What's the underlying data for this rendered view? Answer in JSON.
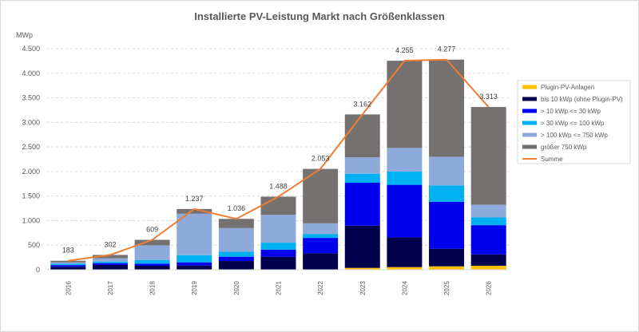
{
  "chart_data": {
    "type": "bar",
    "stacked": true,
    "title": "Installierte PV-Leistung Markt nach Größenklassen",
    "ylabel": "MWp",
    "xlabel": "",
    "ylim": [
      0,
      4500
    ],
    "yticks": [
      0,
      500,
      1000,
      1500,
      2000,
      2500,
      3000,
      3500,
      4000,
      4500
    ],
    "ytick_labels": [
      "0",
      "500",
      "1.000",
      "1.500",
      "2.000",
      "2.500",
      "3.000",
      "3.500",
      "4.000",
      "4.500"
    ],
    "grid": true,
    "legend_position": "right",
    "categories": [
      "2016",
      "2017",
      "2018",
      "2019",
      "2020",
      "2021",
      "2022",
      "2023",
      "2024",
      "2025",
      "2026"
    ],
    "series": [
      {
        "name": "Plugin-PV-Anlagen",
        "color": "#ffc000",
        "values": [
          0,
          0,
          0,
          0,
          0,
          0,
          0,
          38,
          54,
          70,
          81
        ]
      },
      {
        "name": "bis 10 kWp (ohne Plugin-PV)",
        "color": "#00004d",
        "values": [
          60,
          97,
          81,
          86,
          178,
          265,
          335,
          858,
          605,
          357,
          232
        ]
      },
      {
        "name": "> 10 kWp <= 30 kWp",
        "color": "#0000ee",
        "values": [
          35,
          38,
          43,
          65,
          87,
          145,
          313,
          875,
          1069,
          955,
          594
        ]
      },
      {
        "name": "> 30 kWp <= 100 kWp",
        "color": "#00b0f0",
        "values": [
          30,
          32,
          76,
          146,
          102,
          141,
          81,
          184,
          275,
          335,
          157
        ]
      },
      {
        "name": "> 100 kWp <= 750 kWp",
        "color": "#8eaadb",
        "values": [
          25,
          65,
          297,
          843,
          481,
          567,
          216,
          335,
          476,
          583,
          259
        ]
      },
      {
        "name": "größer 750 kWp",
        "color": "#767171",
        "values": [
          33,
          70,
          112,
          97,
          188,
          370,
          1108,
          872,
          1776,
          1977,
          1990
        ]
      }
    ],
    "line": {
      "name": "Summe",
      "color": "#ed7d31",
      "values": [
        183,
        302,
        609,
        1237,
        1036,
        1488,
        2053,
        3162,
        4255,
        4277,
        3313
      ]
    },
    "data_labels": [
      "183",
      "302",
      "609",
      "1.237",
      "1.036",
      "1.488",
      "2.053",
      "3.162",
      "4.255",
      "4.277",
      "3.313"
    ]
  }
}
